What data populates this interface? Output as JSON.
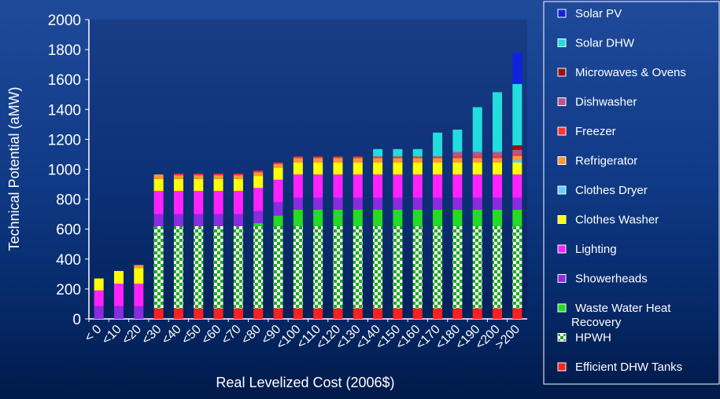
{
  "chart_data": {
    "type": "bar",
    "stacked": true,
    "xlabel": "Real Levelized Cost (2006$)",
    "ylabel": "Technical Potential (aMW)",
    "ylim": [
      0,
      2000
    ],
    "yticks": [
      0,
      200,
      400,
      600,
      800,
      1000,
      1200,
      1400,
      1600,
      1800,
      2000
    ],
    "grid": false,
    "legend_position": "right",
    "categories": [
      "< 0",
      "<10",
      "<20",
      "<30",
      "<40",
      "<50",
      "<60",
      "<70",
      "<80",
      "<90",
      "<100",
      "<110",
      "<120",
      "<130",
      "<140",
      "<150",
      "<160",
      "<170",
      "<180",
      "<190",
      "<200",
      ">200"
    ],
    "series": [
      {
        "name": "Efficient DHW Tanks",
        "color": "#ff2020",
        "pattern": "solid",
        "values": [
          0,
          0,
          0,
          70,
          70,
          70,
          70,
          70,
          70,
          70,
          70,
          70,
          70,
          70,
          70,
          70,
          70,
          70,
          70,
          70,
          70,
          70
        ]
      },
      {
        "name": "HPWH",
        "color": "#22aa22",
        "pattern": "checker",
        "values": [
          0,
          0,
          0,
          550,
          550,
          550,
          550,
          550,
          550,
          550,
          550,
          550,
          550,
          550,
          550,
          550,
          550,
          550,
          550,
          550,
          550,
          550
        ]
      },
      {
        "name": "Waste Water Heat Recovery",
        "color": "#22dd22",
        "pattern": "solid",
        "values": [
          0,
          0,
          0,
          0,
          0,
          0,
          0,
          0,
          20,
          70,
          110,
          110,
          110,
          110,
          110,
          110,
          110,
          110,
          110,
          110,
          110,
          110
        ]
      },
      {
        "name": "Showerheads",
        "color": "#8a2be2",
        "pattern": "solid",
        "values": [
          85,
          85,
          85,
          80,
          80,
          80,
          80,
          80,
          80,
          90,
          80,
          80,
          80,
          80,
          80,
          80,
          80,
          80,
          80,
          80,
          80,
          80
        ]
      },
      {
        "name": "Lighting",
        "color": "#ff22ff",
        "pattern": "solid",
        "values": [
          105,
          150,
          150,
          155,
          155,
          155,
          155,
          155,
          155,
          150,
          155,
          155,
          155,
          155,
          155,
          155,
          155,
          155,
          155,
          155,
          155,
          155
        ]
      },
      {
        "name": "Clothes Washer",
        "color": "#ffff00",
        "pattern": "solid",
        "values": [
          80,
          85,
          105,
          80,
          80,
          80,
          80,
          80,
          80,
          80,
          80,
          80,
          80,
          80,
          80,
          80,
          80,
          80,
          80,
          80,
          80,
          80
        ]
      },
      {
        "name": "Clothes Dryer",
        "color": "#66ccff",
        "pattern": "solid",
        "values": [
          0,
          0,
          0,
          0,
          0,
          0,
          0,
          0,
          0,
          0,
          0,
          0,
          0,
          0,
          0,
          0,
          0,
          0,
          0,
          0,
          0,
          15
        ]
      },
      {
        "name": "Refrigerator",
        "color": "#ff9933",
        "pattern": "solid",
        "values": [
          0,
          0,
          20,
          30,
          25,
          25,
          25,
          25,
          25,
          25,
          30,
          30,
          30,
          30,
          30,
          30,
          30,
          30,
          30,
          30,
          30,
          30
        ]
      },
      {
        "name": "Freezer",
        "color": "#ff3333",
        "pattern": "solid",
        "values": [
          0,
          0,
          0,
          0,
          10,
          10,
          10,
          10,
          10,
          10,
          10,
          10,
          10,
          10,
          10,
          10,
          10,
          10,
          10,
          10,
          10,
          10
        ]
      },
      {
        "name": "Dishwasher",
        "color": "#bb5588",
        "pattern": "solid",
        "values": [
          0,
          0,
          0,
          0,
          0,
          0,
          0,
          0,
          0,
          0,
          0,
          0,
          0,
          0,
          0,
          0,
          0,
          0,
          30,
          30,
          30,
          30
        ]
      },
      {
        "name": "Microwaves & Ovens",
        "color": "#991111",
        "pattern": "solid",
        "values": [
          0,
          0,
          0,
          0,
          0,
          0,
          0,
          0,
          0,
          0,
          0,
          0,
          0,
          0,
          0,
          0,
          0,
          0,
          0,
          0,
          0,
          30
        ]
      },
      {
        "name": "Solar DHW",
        "color": "#22dddd",
        "pattern": "solid",
        "values": [
          0,
          0,
          0,
          0,
          0,
          0,
          0,
          0,
          0,
          0,
          0,
          0,
          0,
          0,
          50,
          50,
          50,
          160,
          150,
          300,
          400,
          410
        ]
      },
      {
        "name": "Solar PV",
        "color": "#1122dd",
        "pattern": "solid",
        "values": [
          0,
          0,
          0,
          0,
          0,
          0,
          0,
          0,
          0,
          0,
          0,
          0,
          0,
          0,
          0,
          0,
          0,
          0,
          0,
          0,
          0,
          210
        ]
      }
    ],
    "legend_order": [
      "Solar PV",
      "Solar DHW",
      "Microwaves & Ovens",
      "Dishwasher",
      "Freezer",
      "Refrigerator",
      "Clothes Dryer",
      "Clothes Washer",
      "Lighting",
      "Showerheads",
      "Waste Water Heat Recovery",
      "HPWH",
      "Efficient DHW Tanks"
    ]
  }
}
